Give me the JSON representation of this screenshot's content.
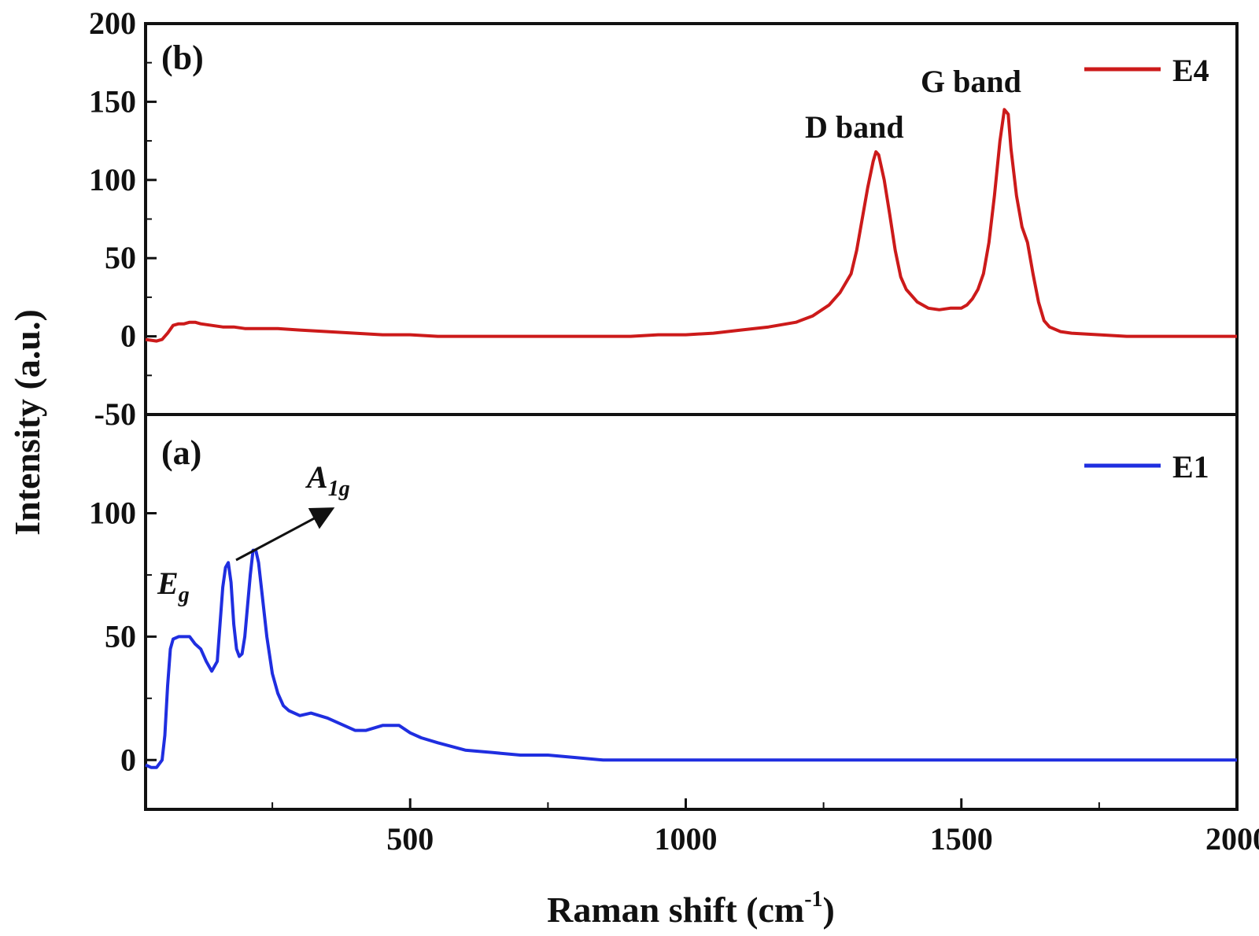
{
  "chart_data": [
    {
      "panel": "(b)",
      "type": "line",
      "ylim": [
        -50,
        200
      ],
      "yticks": [
        -50,
        0,
        50,
        100,
        150,
        200
      ],
      "xlim": [
        20,
        2000
      ],
      "series": [
        {
          "name": "E4",
          "color": "#cc1a1a",
          "x": [
            20,
            40,
            50,
            60,
            70,
            80,
            90,
            100,
            110,
            120,
            140,
            160,
            180,
            200,
            230,
            260,
            300,
            350,
            400,
            450,
            500,
            550,
            600,
            650,
            700,
            750,
            800,
            850,
            900,
            950,
            1000,
            1050,
            1100,
            1150,
            1200,
            1230,
            1260,
            1280,
            1300,
            1310,
            1320,
            1330,
            1340,
            1345,
            1350,
            1360,
            1370,
            1380,
            1390,
            1400,
            1420,
            1440,
            1460,
            1480,
            1500,
            1510,
            1520,
            1530,
            1540,
            1550,
            1560,
            1570,
            1578,
            1585,
            1590,
            1600,
            1610,
            1620,
            1630,
            1640,
            1650,
            1660,
            1680,
            1700,
            1750,
            1800,
            1850,
            1900,
            1950,
            2000
          ],
          "y": [
            -2,
            -3,
            -2,
            2,
            7,
            8,
            8,
            9,
            9,
            8,
            7,
            6,
            6,
            5,
            5,
            5,
            4,
            3,
            2,
            1,
            1,
            0,
            0,
            0,
            0,
            0,
            0,
            0,
            0,
            1,
            1,
            2,
            4,
            6,
            9,
            13,
            20,
            28,
            40,
            55,
            75,
            95,
            112,
            118,
            116,
            100,
            78,
            55,
            38,
            30,
            22,
            18,
            17,
            18,
            18,
            20,
            24,
            30,
            40,
            60,
            90,
            125,
            145,
            142,
            120,
            90,
            70,
            60,
            40,
            22,
            10,
            6,
            3,
            2,
            1,
            0,
            0,
            0,
            0,
            0
          ],
          "line_width": 4
        }
      ],
      "legend": {
        "position": "top-right"
      },
      "annotations": [
        "D band",
        "G band"
      ]
    },
    {
      "panel": "(a)",
      "type": "line",
      "ylim": [
        -20,
        140
      ],
      "yticks": [
        0,
        50,
        100
      ],
      "xlim": [
        20,
        2000
      ],
      "xticks": [
        500,
        1000,
        1500,
        2000
      ],
      "series": [
        {
          "name": "E1",
          "color": "#1f2ee0",
          "x": [
            20,
            30,
            40,
            50,
            55,
            60,
            65,
            70,
            80,
            90,
            100,
            110,
            120,
            130,
            140,
            150,
            160,
            165,
            170,
            175,
            180,
            185,
            190,
            195,
            200,
            210,
            215,
            220,
            225,
            230,
            240,
            250,
            260,
            270,
            280,
            300,
            320,
            350,
            380,
            400,
            420,
            450,
            480,
            500,
            520,
            550,
            600,
            650,
            700,
            750,
            800,
            850,
            900,
            950,
            1000,
            1100,
            1200,
            1300,
            1400,
            1500,
            1600,
            1700,
            1800,
            1900,
            2000
          ],
          "y": [
            -2,
            -3,
            -3,
            0,
            10,
            30,
            45,
            49,
            50,
            50,
            50,
            47,
            45,
            40,
            36,
            40,
            70,
            78,
            80,
            72,
            55,
            45,
            42,
            43,
            50,
            75,
            85,
            85,
            80,
            70,
            50,
            35,
            27,
            22,
            20,
            18,
            19,
            17,
            14,
            12,
            12,
            14,
            14,
            11,
            9,
            7,
            4,
            3,
            2,
            2,
            1,
            0,
            0,
            0,
            0,
            0,
            0,
            0,
            0,
            0,
            0,
            0,
            0,
            0,
            0
          ],
          "line_width": 4
        }
      ],
      "legend": {
        "position": "top-right"
      },
      "annotations": [
        "E",
        "g",
        "A",
        "1g"
      ]
    }
  ],
  "labels": {
    "panel_b": "(b)",
    "panel_a": "(a)",
    "ylabel": "Intensity (a.u.)",
    "xlabel_main": "Raman shift (cm",
    "xlabel_sup": "-1",
    "xlabel_close": ")",
    "legend_b": "E4",
    "legend_a": "E1",
    "d_band": "D band",
    "g_band": "G band",
    "eg_main": "E",
    "eg_sub": "g",
    "a1g_main": "A",
    "a1g_sub": "1g"
  }
}
